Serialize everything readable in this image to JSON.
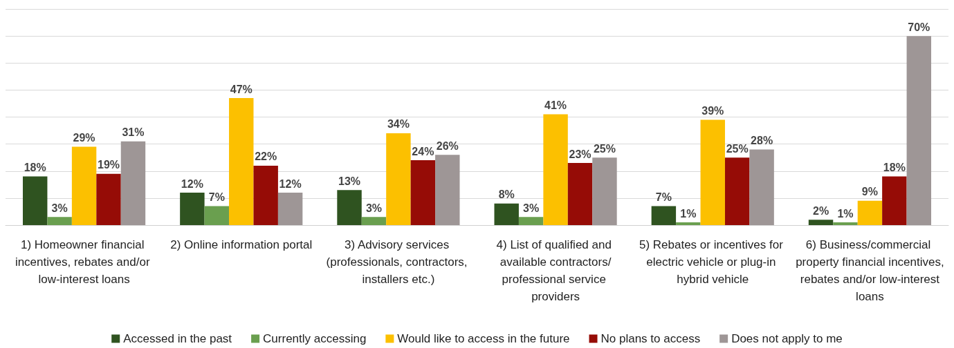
{
  "chart_data": {
    "type": "bar",
    "categories": [
      "1) Homeowner financial incentives, rebates and/or low-interest loans",
      "2) Online information portal",
      "3) Advisory services (professionals, contractors, installers etc.)",
      "4) List of qualified and available contractors/professional service providers",
      "5) Rebates or incentives for electric vehicle or plug-in hybrid vehicle",
      "6) Business/commercial property financial incentives, rebates and/or low-interest loans"
    ],
    "series": [
      {
        "name": "Accessed in the past",
        "color": "#2f5320",
        "values": [
          18,
          12,
          13,
          8,
          7,
          2
        ],
        "value_labels": [
          "18%",
          "12%",
          "13%",
          "8%",
          "7%",
          "2%"
        ]
      },
      {
        "name": "Currently accessing",
        "color": "#6a9f4f",
        "values": [
          3,
          7,
          3,
          3,
          1,
          1
        ],
        "value_labels": [
          "3%",
          "7%",
          "3%",
          "3%",
          "1%",
          "1%"
        ]
      },
      {
        "name": "Would like to access in the future",
        "color": "#fcc000",
        "values": [
          29,
          47,
          34,
          41,
          39,
          9
        ],
        "value_labels": [
          "29%",
          "47%",
          "34%",
          "41%",
          "39%",
          "9%"
        ]
      },
      {
        "name": "No plans to access",
        "color": "#960c06",
        "values": [
          19,
          22,
          24,
          23,
          25,
          18
        ],
        "value_labels": [
          "19%",
          "22%",
          "24%",
          "23%",
          "25%",
          "18%"
        ]
      },
      {
        "name": "Does not apply to me",
        "color": "#9e9696",
        "values": [
          31,
          12,
          26,
          25,
          28,
          70
        ],
        "value_labels": [
          "31%",
          "12%",
          "26%",
          "25%",
          "28%",
          "70%"
        ]
      }
    ],
    "ylim": [
      0,
      80
    ],
    "yticks": [
      {
        "value": 0,
        "label": null
      },
      {
        "value": 10,
        "label": null
      },
      {
        "value": 20,
        "label": null
      },
      {
        "value": 30,
        "label": null
      },
      {
        "value": 40,
        "label": null
      },
      {
        "value": 50,
        "label": null
      },
      {
        "value": 60,
        "label": null
      },
      {
        "value": 70,
        "label": null
      },
      {
        "value": 80,
        "label": null
      }
    ],
    "tick_labels": "x",
    "grid": "y",
    "legend": "bottom"
  }
}
